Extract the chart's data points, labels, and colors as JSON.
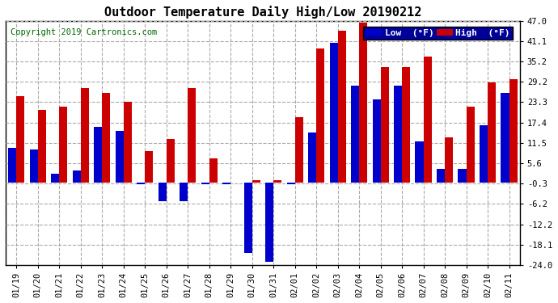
{
  "title": "Outdoor Temperature Daily High/Low 20190212",
  "copyright": "Copyright 2019 Cartronics.com",
  "legend_low_label": "Low  (°F)",
  "legend_high_label": "High  (°F)",
  "low_color": "#0000cc",
  "high_color": "#cc0000",
  "background_color": "#ffffff",
  "plot_bg_color": "#ffffff",
  "grid_color": "#aaaaaa",
  "dates": [
    "01/19",
    "01/20",
    "01/21",
    "01/22",
    "01/23",
    "01/24",
    "01/25",
    "01/26",
    "01/27",
    "01/28",
    "01/29",
    "01/30",
    "01/31",
    "02/01",
    "02/02",
    "02/03",
    "02/04",
    "02/05",
    "02/06",
    "02/07",
    "02/08",
    "02/09",
    "02/10",
    "02/11"
  ],
  "highs": [
    25.0,
    21.0,
    22.0,
    27.5,
    26.0,
    23.5,
    9.0,
    12.5,
    27.5,
    7.0,
    0.0,
    0.5,
    0.5,
    19.0,
    39.0,
    44.0,
    46.5,
    33.5,
    33.5,
    36.5,
    13.0,
    22.0,
    29.0,
    30.0
  ],
  "lows": [
    10.0,
    9.5,
    2.5,
    3.5,
    16.0,
    15.0,
    -0.5,
    -5.5,
    -5.5,
    -0.5,
    -0.5,
    -20.5,
    -23.0,
    -0.5,
    14.5,
    40.5,
    28.0,
    24.0,
    28.0,
    12.0,
    4.0,
    4.0,
    16.5,
    26.0
  ],
  "ylim": [
    -24.0,
    47.0
  ],
  "yticks": [
    -24.0,
    -18.1,
    -12.2,
    -6.2,
    -0.3,
    5.6,
    11.5,
    17.4,
    23.3,
    29.2,
    35.2,
    41.1,
    47.0
  ],
  "ytick_labels": [
    "-24.0",
    "-18.1",
    "-12.2",
    "-6.2",
    "-0.3",
    "5.6",
    "11.5",
    "17.4",
    "23.3",
    "29.2",
    "35.2",
    "41.1",
    "47.0"
  ],
  "bar_width": 0.38,
  "title_fontsize": 11,
  "tick_fontsize": 7.5,
  "copyright_fontsize": 7.5
}
